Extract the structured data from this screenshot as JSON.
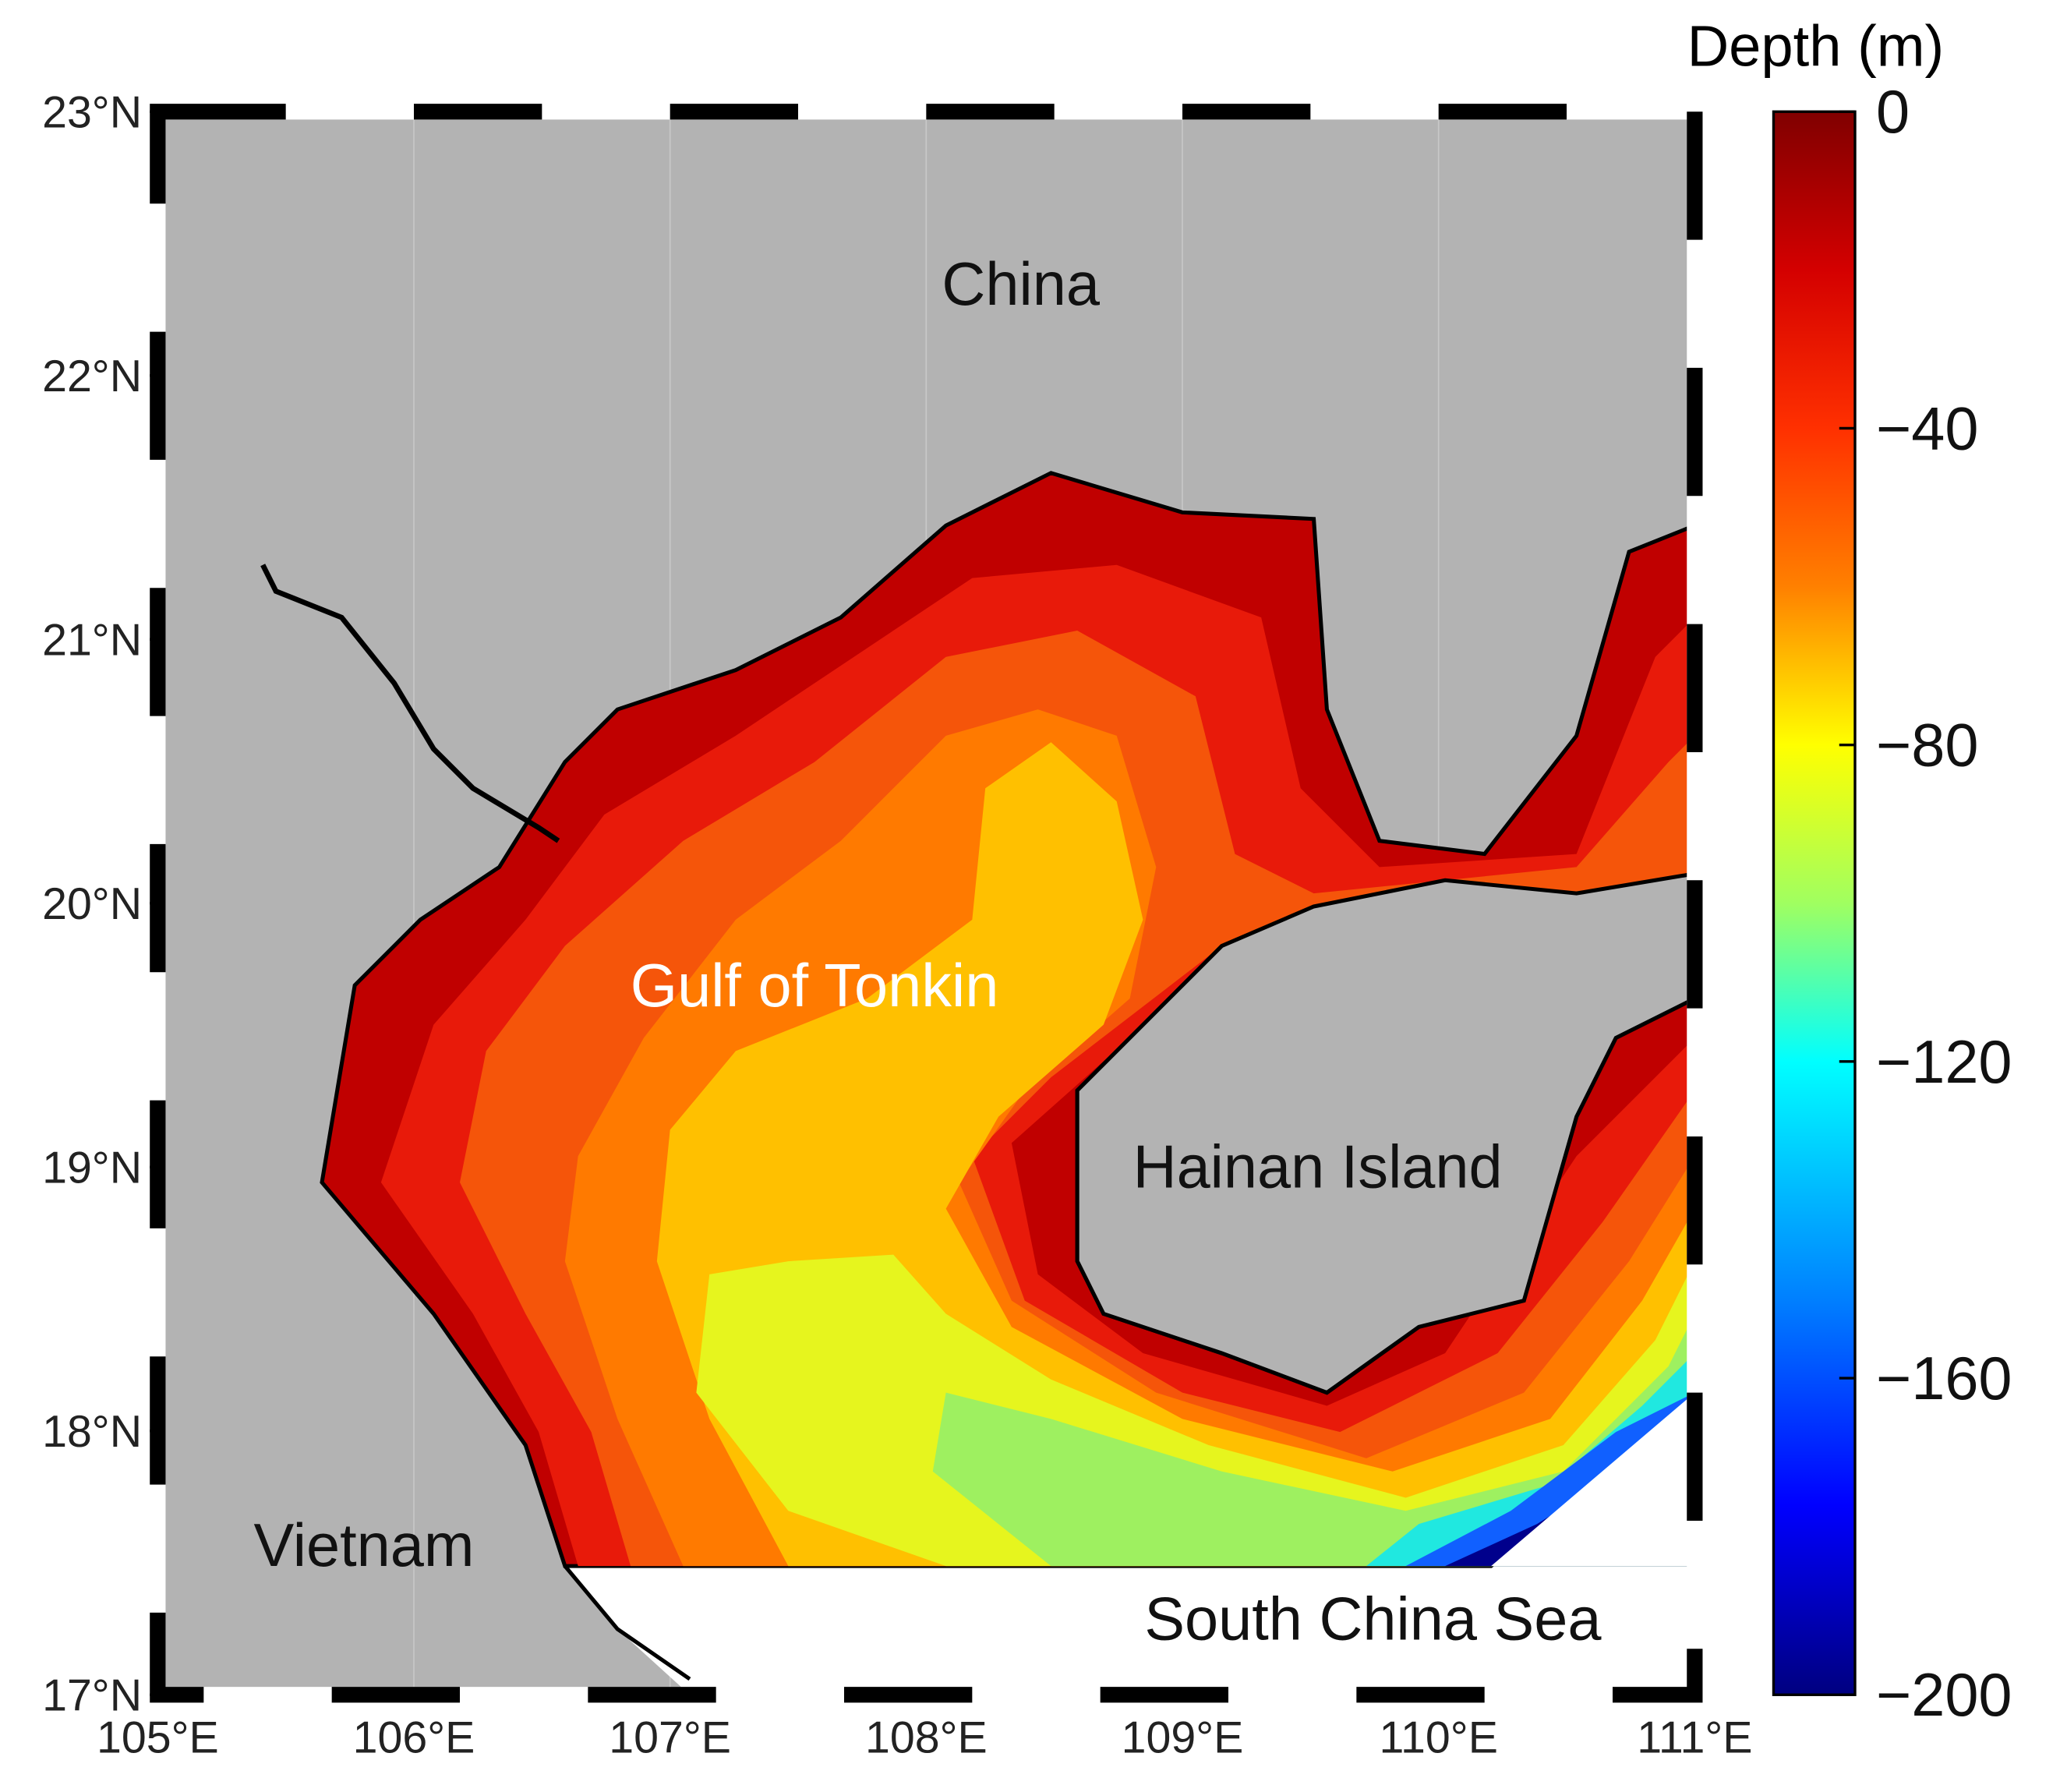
{
  "map": {
    "xlim": [
      105,
      111
    ],
    "ylim": [
      17,
      23
    ],
    "xticks": [
      {
        "value": 105,
        "label": "105°E"
      },
      {
        "value": 106,
        "label": "106°E"
      },
      {
        "value": 107,
        "label": "107°E"
      },
      {
        "value": 108,
        "label": "108°E"
      },
      {
        "value": 109,
        "label": "109°E"
      },
      {
        "value": 110,
        "label": "110°E"
      },
      {
        "value": 111,
        "label": "111°E"
      }
    ],
    "yticks": [
      {
        "value": 17,
        "label": "17°N"
      },
      {
        "value": 18,
        "label": "18°N"
      },
      {
        "value": 19,
        "label": "19°N"
      },
      {
        "value": 20,
        "label": "20°N"
      },
      {
        "value": 21,
        "label": "21°N"
      },
      {
        "value": 22,
        "label": "22°N"
      },
      {
        "value": 23,
        "label": "23°N"
      }
    ],
    "annotations": [
      "China",
      "Gulf of Tonkin",
      "Hainan Island",
      "Vietnam",
      "South China Sea"
    ],
    "colorbar": {
      "label": "Depth (m)",
      "lim": [
        -200,
        0
      ],
      "ticks": [
        0,
        {
          "value": -40,
          "label": "−40"
        },
        {
          "value": -80,
          "label": "−80"
        },
        {
          "value": -120,
          "label": "−120"
        },
        {
          "value": -160,
          "label": "−160"
        },
        {
          "value": -200,
          "label": "−200"
        }
      ]
    }
  }
}
